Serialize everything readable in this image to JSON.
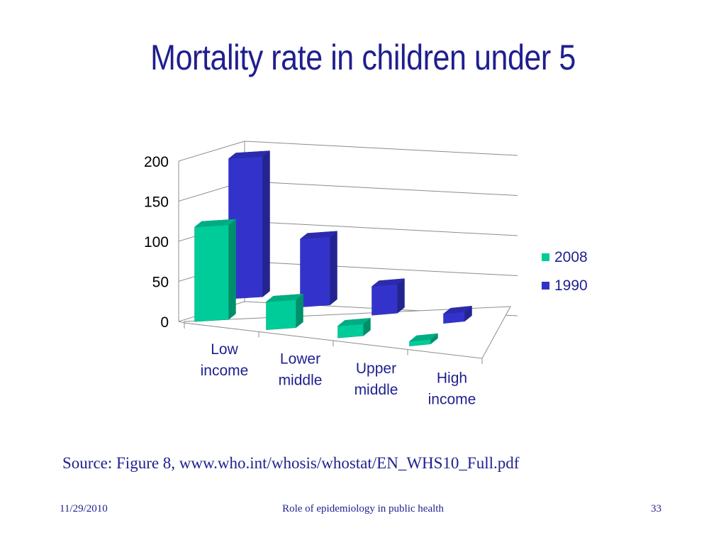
{
  "slide": {
    "title": "Mortality rate in children under 5",
    "source": "Source: Figure 8, www.who.int/whosis/whostat/EN_WHS10_Full.pdf",
    "footer_date": "11/29/2010",
    "footer_title": "Role of epidemiology in public health",
    "page_number": "33"
  },
  "chart_data": {
    "type": "bar",
    "title": "",
    "xlabel": "",
    "ylabel": "",
    "categories": [
      [
        "Low",
        "income"
      ],
      [
        "Lower",
        "middle"
      ],
      [
        "Upper",
        "middle"
      ],
      [
        "High",
        "income"
      ]
    ],
    "series": [
      {
        "name": "2008",
        "color": "#00cc99",
        "values": [
          118,
          35,
          15,
          6
        ]
      },
      {
        "name": "1990",
        "color": "#3333cc",
        "values": [
          175,
          85,
          36,
          12
        ]
      }
    ],
    "ylim": [
      0,
      200
    ],
    "yticks": [
      "0",
      "50",
      "100",
      "150",
      "200"
    ],
    "grid": true,
    "legend_position": "right",
    "style": "3d-clustered"
  }
}
